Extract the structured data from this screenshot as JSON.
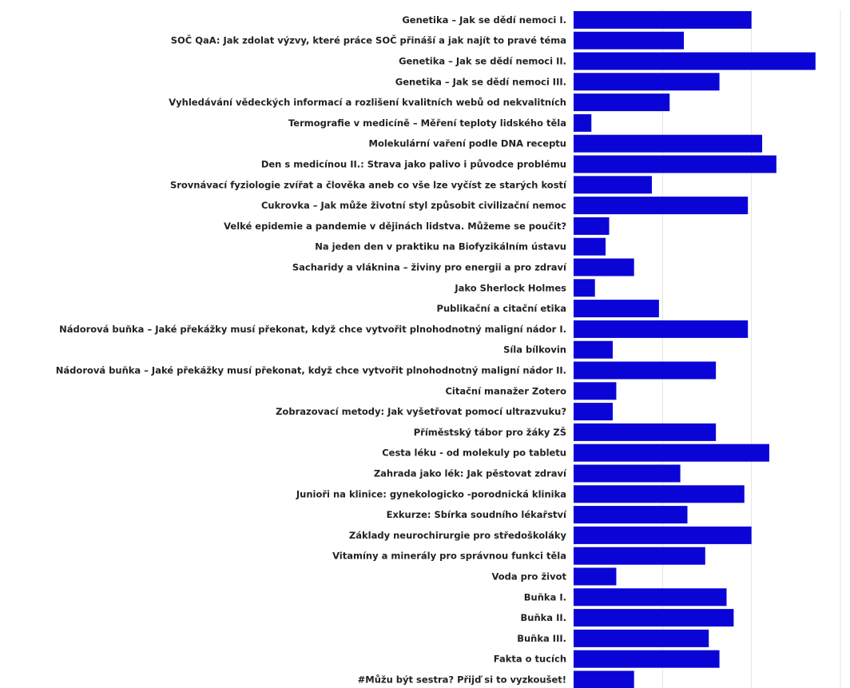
{
  "chart_data": {
    "type": "bar",
    "orientation": "horizontal",
    "categories": [
      "Genetika – Jak se dědí nemoci I.",
      "SOČ QaA: Jak zdolat výzvy, které práce SOČ přináší a jak najít to pravé téma",
      "Genetika – Jak se dědí nemoci II.",
      "Genetika – Jak se dědí nemoci III.",
      "Vyhledávání vědeckých informací a rozlišení kvalitních webů od nekvalitních",
      "Termografie v medicíně – Měření teploty lidského těla",
      "Molekulární vaření podle DNA receptu",
      "Den s medicínou II.: Strava jako palivo i původce problému",
      "Srovnávací fyziologie zvířat a člověka aneb co vše lze vyčíst ze starých kostí",
      "Cukrovka – Jak může životní styl způsobit civilizační nemoc",
      "Velké epidemie a pandemie v dějinách lidstva. Můžeme se poučit?",
      "Na jeden den v praktiku na Biofyzikálním ústavu",
      "Sacharidy a vláknina – živiny pro energii a pro zdraví",
      "Jako Sherlock Holmes",
      "Publikační a citační etika",
      "Nádorová buňka – Jaké překážky musí překonat, když chce vytvořit plnohodnotný maligní nádor I.",
      "Síla bílkovin",
      "Nádorová buňka – Jaké překážky musí překonat, když chce vytvořit plnohodnotný maligní nádor II.",
      "Citační manažer Zotero",
      "Zobrazovací metody: Jak vyšetřovat pomocí ultrazvuku?",
      "Příměstský tábor pro žáky ZŠ",
      "Cesta léku - od molekuly  po tabletu",
      "Zahrada jako lék: Jak pěstovat zdraví",
      "Junioři na klinice: gynekologicko -porodnická klinika",
      "Exkurze: Sbírka soudního lékařství",
      "Základy neurochirurgie pro středoškoláky",
      "Vitamíny a minerály pro správnou funkci těla",
      "Voda pro život",
      "Buňka I.",
      "Buňka II.",
      "Buňka III.",
      "Fakta o tucích",
      "#Můžu být sestra? Přijď si to vyzkoušet!"
    ],
    "values": [
      50,
      31,
      68,
      41,
      27,
      5,
      53,
      57,
      22,
      49,
      10,
      9,
      17,
      6,
      24,
      49,
      11,
      40,
      12,
      11,
      40,
      55,
      30,
      48,
      32,
      50,
      37,
      12,
      43,
      45,
      38,
      41,
      17
    ],
    "xlim": [
      0,
      75
    ],
    "xticks": [
      0,
      25,
      50,
      75
    ],
    "bar_color": "#0a05d6",
    "grid": true,
    "grid_color": "#e3e3e3",
    "legend": false
  }
}
